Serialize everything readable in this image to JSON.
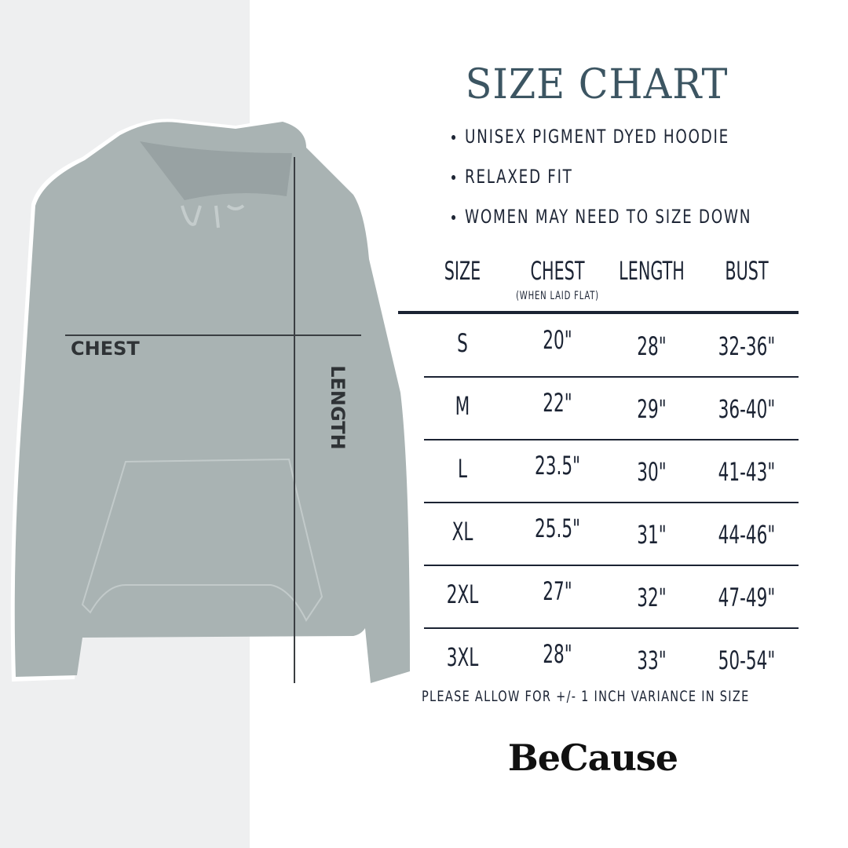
{
  "title": "SIZE CHART",
  "bullets": [
    "UNISEX PIGMENT DYED HOODIE",
    "RELAXED FIT",
    "WOMEN MAY NEED TO SIZE DOWN"
  ],
  "diagram_labels": {
    "chest": "CHEST",
    "length": "LENGTH"
  },
  "table": {
    "headers": [
      "SIZE",
      "CHEST",
      "LENGTH",
      "BUST"
    ],
    "chest_note": "(WHEN LAID FLAT)",
    "rows": [
      [
        "S",
        "20\"",
        "28\"",
        "32-36\""
      ],
      [
        "M",
        "22\"",
        "29\"",
        "36-40\""
      ],
      [
        "L",
        "23.5\"",
        "30\"",
        "41-43\""
      ],
      [
        "XL",
        "25.5\"",
        "31\"",
        "44-46\""
      ],
      [
        "2XL",
        "27\"",
        "32\"",
        "47-49\""
      ],
      [
        "3XL",
        "28\"",
        "33\"",
        "50-54\""
      ]
    ]
  },
  "note": "PLEASE ALLOW FOR +/- 1 INCH VARIANCE IN SIZE",
  "brand": "BeCause",
  "colors": {
    "title": "#3c5562",
    "text": "#1b2333",
    "hoodie": "#a9b3b3",
    "panel": "#eeeff0"
  }
}
